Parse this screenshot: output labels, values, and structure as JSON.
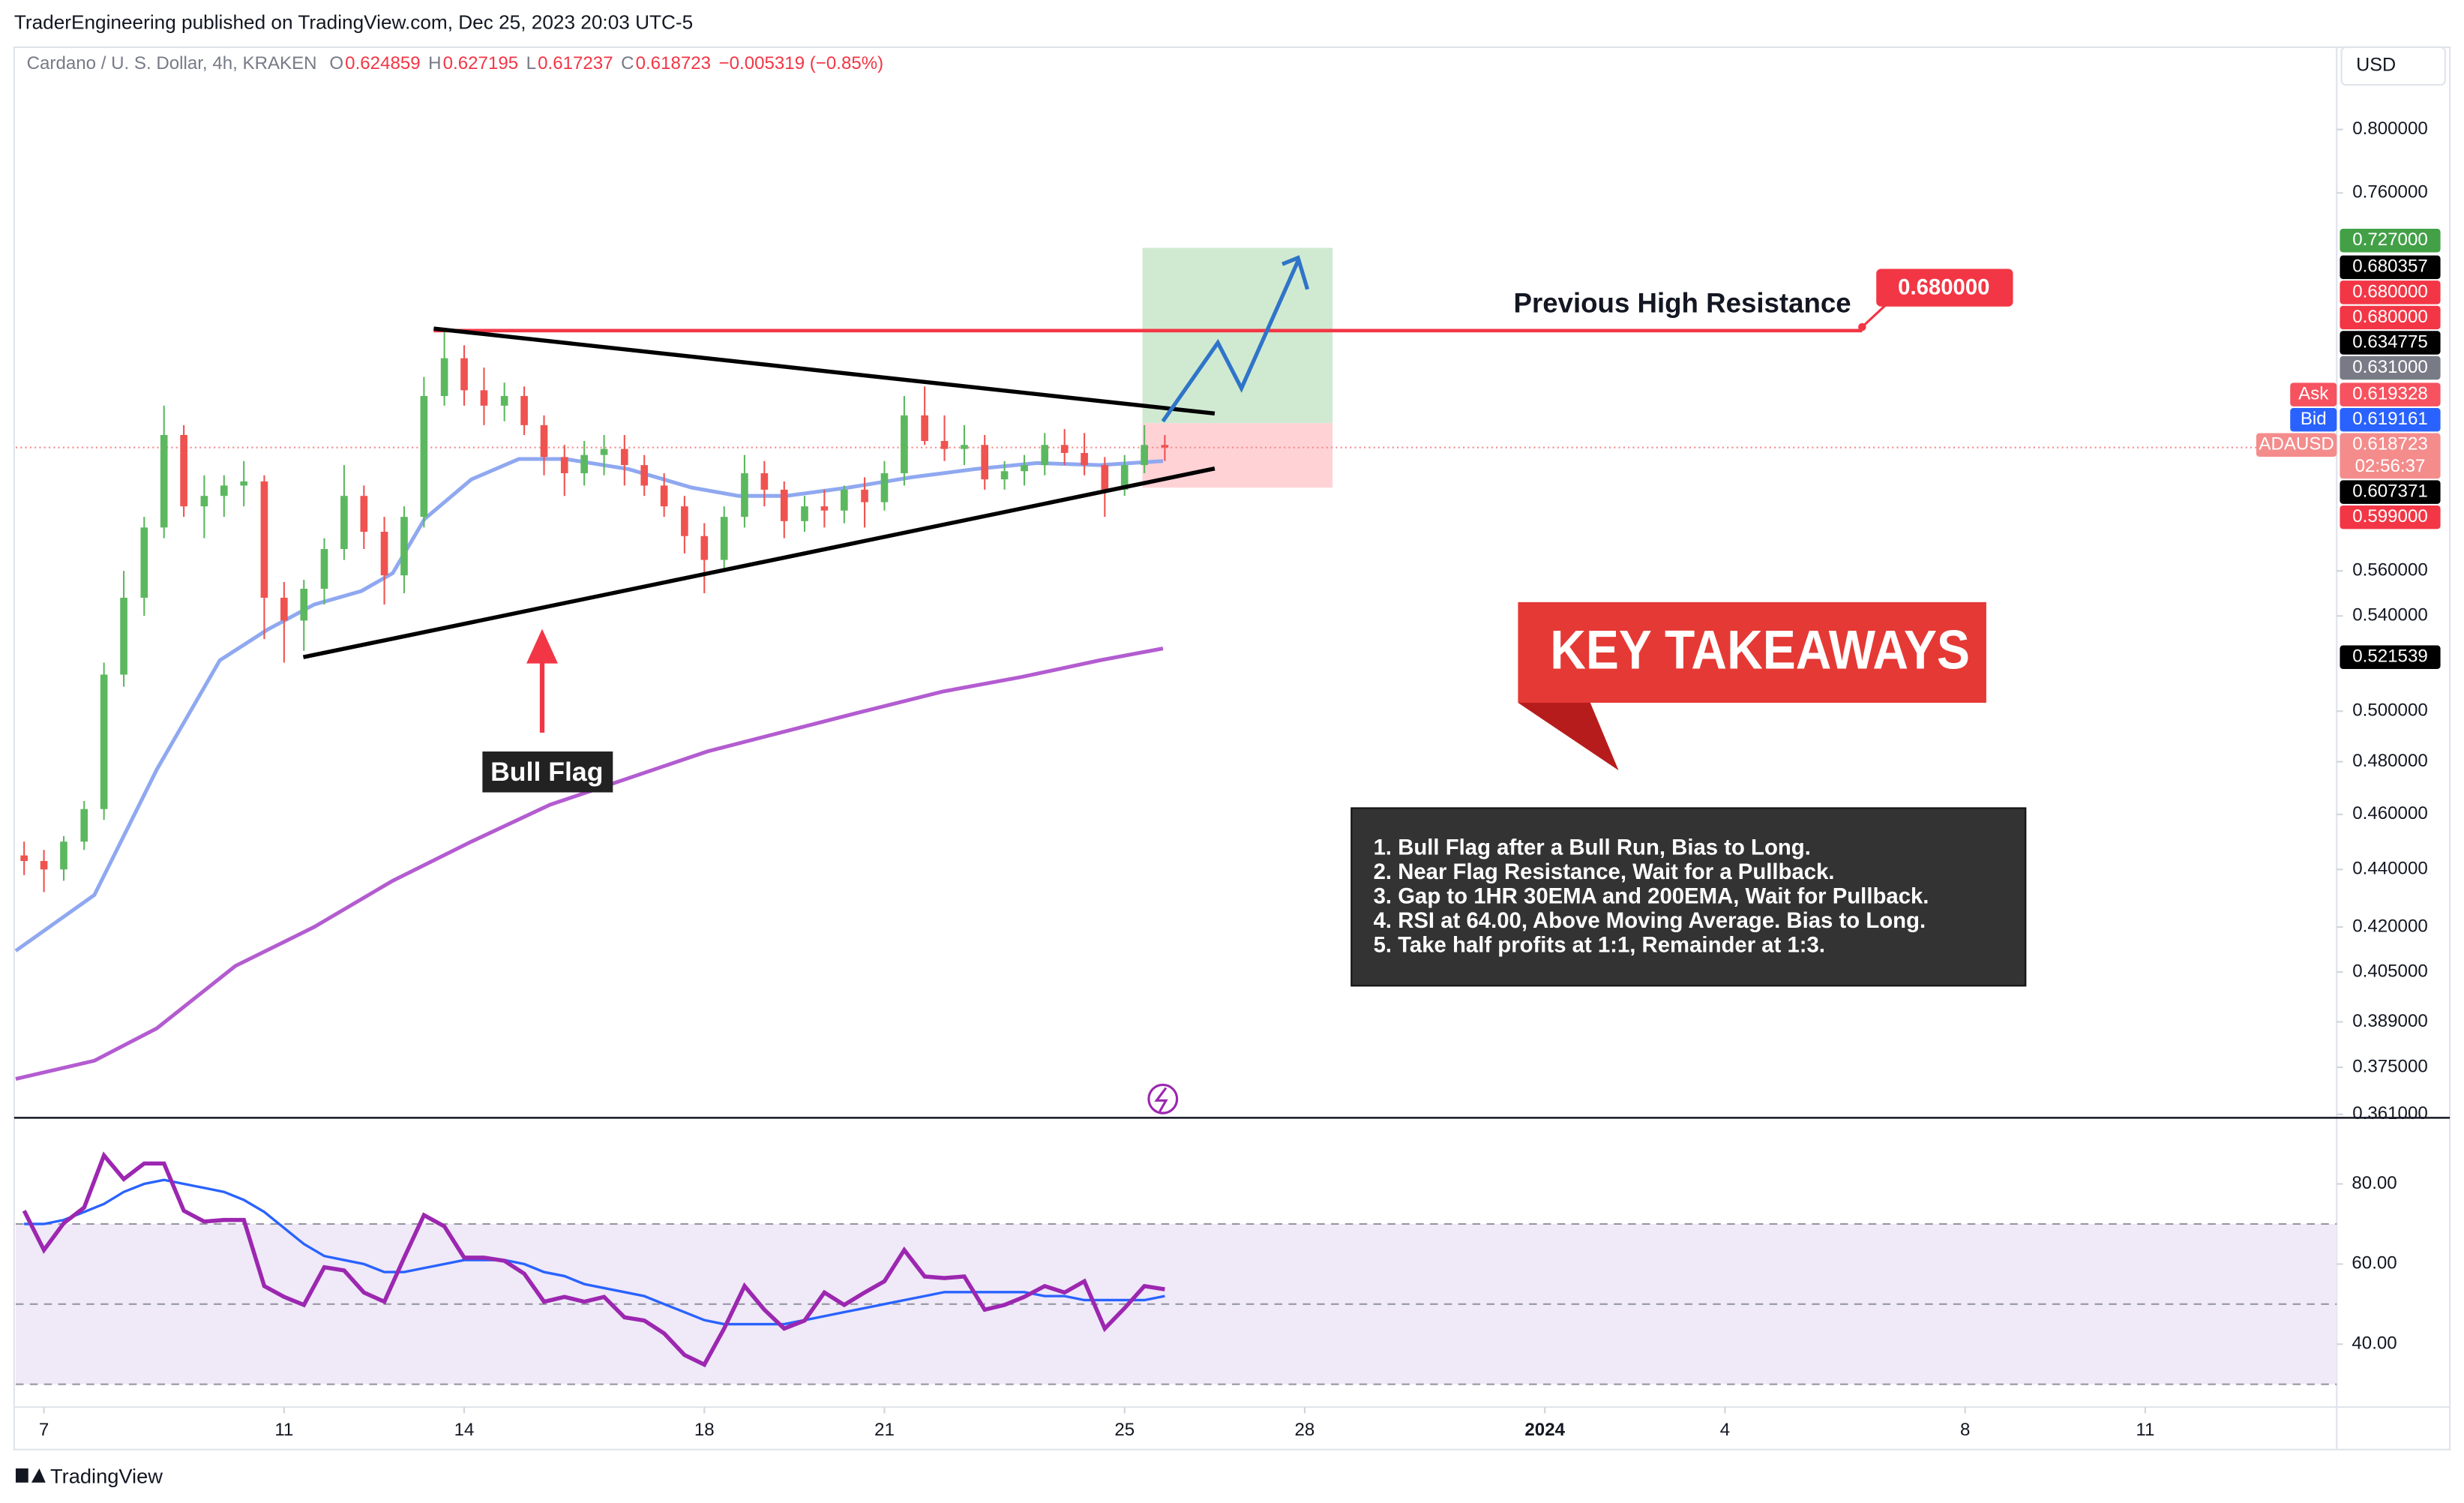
{
  "header": {
    "text": "TraderEngineering published on TradingView.com, Dec 25, 2023 20:03 UTC-5"
  },
  "currency": "USD",
  "footer": "TradingView",
  "annotations": {
    "resistance_label": "Previous High Resistance",
    "resistance_callout": "0.680000",
    "flag_label": "Bull Flag",
    "takeaways_title": "KEY TAKEAWAYS",
    "takeaways": [
      "1. Bull Flag after a Bull Run, Bias to Long.",
      "2. Near Flag Resistance, Wait for a Pullback.",
      "3. Gap to 1HR 30EMA and 200EMA, Wait for Pullback.",
      "4. RSI at 64.00, Above Moving Average. Bias to Long.",
      "5. Take half profits at 1:1, Remainder at 1:3."
    ]
  },
  "chart_data": [
    {
      "type": "candlestick",
      "symbol": "Cardano / U. S. Dollar, 4h, KRAKEN",
      "legend_values": [
        {
          "key": "O",
          "value": "0.624859"
        },
        {
          "key": "H",
          "value": "0.627195"
        },
        {
          "key": "L",
          "value": "0.617237"
        },
        {
          "key": "C",
          "value": "0.618723"
        }
      ],
      "change": "−0.005319 (−0.85%)",
      "x": [
        6.67,
        7,
        7.33,
        7.67,
        8,
        8.33,
        8.67,
        9,
        9.33,
        9.67,
        10,
        10.33,
        10.67,
        11,
        11.33,
        11.67,
        12,
        12.33,
        12.67,
        13,
        13.33,
        13.67,
        14,
        14.33,
        14.67,
        15,
        15.33,
        15.67,
        16,
        16.33,
        16.67,
        17,
        17.33,
        17.67,
        18,
        18.33,
        18.67,
        19,
        19.33,
        19.67,
        20,
        20.33,
        20.67,
        21,
        21.33,
        21.67,
        22,
        22.33,
        22.67,
        23,
        23.33,
        23.67,
        24,
        24.33,
        24.67,
        25,
        25.33,
        25.67
      ],
      "open": [
        0.445,
        0.443,
        0.44,
        0.45,
        0.462,
        0.515,
        0.548,
        0.58,
        0.625,
        0.59,
        0.595,
        0.6,
        0.602,
        0.548,
        0.538,
        0.552,
        0.57,
        0.595,
        0.578,
        0.558,
        0.585,
        0.645,
        0.665,
        0.648,
        0.64,
        0.645,
        0.63,
        0.614,
        0.606,
        0.615,
        0.618,
        0.61,
        0.6,
        0.59,
        0.576,
        0.565,
        0.585,
        0.606,
        0.598,
        0.583,
        0.59,
        0.588,
        0.598,
        0.592,
        0.606,
        0.635,
        0.622,
        0.618,
        0.62,
        0.603,
        0.607,
        0.61,
        0.62,
        0.616,
        0.61,
        0.598,
        0.61,
        0.62
      ],
      "high": [
        0.45,
        0.447,
        0.452,
        0.465,
        0.52,
        0.56,
        0.585,
        0.64,
        0.63,
        0.605,
        0.605,
        0.612,
        0.605,
        0.555,
        0.556,
        0.575,
        0.61,
        0.6,
        0.585,
        0.59,
        0.655,
        0.68,
        0.672,
        0.66,
        0.652,
        0.65,
        0.635,
        0.62,
        0.622,
        0.625,
        0.625,
        0.615,
        0.606,
        0.595,
        0.582,
        0.59,
        0.615,
        0.612,
        0.602,
        0.595,
        0.598,
        0.6,
        0.604,
        0.612,
        0.645,
        0.65,
        0.635,
        0.63,
        0.625,
        0.612,
        0.615,
        0.626,
        0.628,
        0.626,
        0.614,
        0.615,
        0.63,
        0.625
      ],
      "low": [
        0.438,
        0.432,
        0.436,
        0.447,
        0.458,
        0.51,
        0.54,
        0.575,
        0.585,
        0.575,
        0.585,
        0.59,
        0.53,
        0.52,
        0.525,
        0.545,
        0.565,
        0.57,
        0.545,
        0.55,
        0.58,
        0.64,
        0.64,
        0.63,
        0.632,
        0.625,
        0.605,
        0.595,
        0.6,
        0.605,
        0.6,
        0.595,
        0.585,
        0.568,
        0.55,
        0.56,
        0.58,
        0.59,
        0.575,
        0.578,
        0.58,
        0.582,
        0.58,
        0.588,
        0.6,
        0.62,
        0.612,
        0.61,
        0.598,
        0.598,
        0.6,
        0.605,
        0.61,
        0.605,
        0.585,
        0.595,
        0.606,
        0.612
      ],
      "close": [
        0.443,
        0.44,
        0.45,
        0.462,
        0.515,
        0.548,
        0.58,
        0.625,
        0.59,
        0.595,
        0.6,
        0.602,
        0.548,
        0.538,
        0.552,
        0.57,
        0.595,
        0.578,
        0.558,
        0.585,
        0.645,
        0.665,
        0.648,
        0.64,
        0.645,
        0.63,
        0.614,
        0.606,
        0.615,
        0.618,
        0.61,
        0.6,
        0.59,
        0.576,
        0.565,
        0.585,
        0.606,
        0.598,
        0.583,
        0.59,
        0.588,
        0.598,
        0.592,
        0.606,
        0.635,
        0.622,
        0.618,
        0.62,
        0.603,
        0.607,
        0.61,
        0.62,
        0.616,
        0.61,
        0.598,
        0.61,
        0.62,
        0.6187
      ],
      "color_up": "#5cb85f",
      "color_down": "#ef5350",
      "overlays": [
        {
          "color": "#8fa8f0",
          "x": [
            6.53,
            7.84,
            8.88,
            9.93,
            10.72,
            11.5,
            12.29,
            12.81,
            13.34,
            14.12,
            14.91,
            15.69,
            16.74,
            17.79,
            18.57,
            19.36,
            20.4,
            21.45,
            22.5,
            23.54,
            24.59,
            25.64
          ],
          "values": [
            0.412,
            0.431,
            0.477,
            0.521,
            0.534,
            0.545,
            0.551,
            0.559,
            0.584,
            0.603,
            0.613,
            0.613,
            0.608,
            0.599,
            0.595,
            0.595,
            0.599,
            0.604,
            0.608,
            0.611,
            0.61,
            0.612
          ]
        },
        {
          "color": "#b35cd0",
          "x": [
            6.53,
            7.84,
            8.88,
            10.19,
            11.5,
            12.81,
            14.12,
            15.43,
            16.74,
            18.05,
            19.36,
            20.66,
            21.97,
            23.28,
            24.59,
            25.64
          ],
          "values": [
            0.3715,
            0.377,
            0.387,
            0.407,
            0.42,
            0.436,
            0.45,
            0.4636,
            0.4737,
            0.484,
            0.492,
            0.5,
            0.508,
            0.514,
            0.521,
            0.526
          ]
        }
      ],
      "log_scale": true,
      "grid": false,
      "ylim": [
        0.36,
        0.855
      ],
      "yticks": [
        {
          "value": 0.8,
          "label": "0.800000"
        },
        {
          "value": 0.76,
          "label": "0.760000"
        },
        {
          "value": 0.56,
          "label": "0.560000"
        },
        {
          "value": 0.54,
          "label": "0.540000"
        },
        {
          "value": 0.5,
          "label": "0.500000"
        },
        {
          "value": 0.48,
          "label": "0.480000"
        },
        {
          "value": 0.46,
          "label": "0.460000"
        },
        {
          "value": 0.44,
          "label": "0.440000"
        },
        {
          "value": 0.42,
          "label": "0.420000"
        },
        {
          "value": 0.405,
          "label": "0.405000"
        },
        {
          "value": 0.389,
          "label": "0.389000"
        },
        {
          "value": 0.375,
          "label": "0.375000"
        },
        {
          "value": 0.361,
          "label": "0.361000"
        }
      ],
      "xlim": [
        6.53,
        45.19
      ],
      "xticks": [
        7,
        11,
        14,
        18,
        21,
        25,
        28,
        {
          "value": 32,
          "label": "2024"
        },
        {
          "value": 35,
          "label": "4"
        },
        {
          "value": 39,
          "label": "8"
        },
        {
          "value": 42,
          "label": "11"
        }
      ],
      "price_labels": [
        {
          "value": 0.727,
          "label": "0.727000",
          "color": "#43a047"
        },
        {
          "value": 0.680357,
          "label": "0.680357",
          "color": "#000000"
        },
        {
          "value": 0.68,
          "label": "0.680000",
          "color": "#f23645"
        },
        {
          "value": 0.68,
          "label": "0.680000",
          "color": "#f23645"
        },
        {
          "value": 0.634775,
          "label": "0.634775",
          "color": "#000000"
        },
        {
          "value": 0.631,
          "label": "0.631000",
          "color": "#787b86"
        },
        {
          "value": 0.619328,
          "label": "0.619328",
          "color": "#f7525f",
          "tag": "Ask"
        },
        {
          "value": 0.619161,
          "label": "0.619161",
          "color": "#2962ff",
          "tag": "Bid"
        },
        {
          "value": 0.618723,
          "label": "0.618723",
          "color": "#f48c8c",
          "tag": "ADAUSD",
          "countdown": "02:56:37"
        },
        {
          "value": 0.607371,
          "label": "0.607371",
          "color": "#000000"
        },
        {
          "value": 0.599,
          "label": "0.599000",
          "color": "#f23645"
        },
        {
          "value": 0.521539,
          "label": "0.521539",
          "color": "#000000"
        }
      ]
    },
    {
      "type": "line",
      "series": [
        {
          "color": "#9c27b0",
          "values": [
            73.3,
            63.5,
            70.2,
            74.1,
            87.1,
            81.2,
            85.1,
            85.1,
            73.3,
            70.6,
            71,
            71,
            54.5,
            51.8,
            49.8,
            59.2,
            58.4,
            52.9,
            50.6,
            61.6,
            72.2,
            69.4,
            61.6,
            61.6,
            60.8,
            57.6,
            50.6,
            51.8,
            50.6,
            51.8,
            46.7,
            45.9,
            42.7,
            37.3,
            34.9,
            43.9,
            54.5,
            48.6,
            43.9,
            45.9,
            52.9,
            49.8,
            52.9,
            55.7,
            63.5,
            56.9,
            56.5,
            56.9,
            48.6,
            49.8,
            51.8,
            54.5,
            52.9,
            55.7,
            43.9,
            49,
            54.5,
            53.7
          ]
        },
        {
          "color": "#2962ff",
          "values": [
            70,
            70,
            71,
            73,
            75,
            78,
            80,
            81,
            80,
            79,
            78,
            76,
            73,
            69,
            65,
            62,
            61,
            60,
            58,
            58,
            59,
            60,
            61,
            61,
            61,
            60,
            58,
            57,
            55,
            54,
            53,
            52,
            50,
            48,
            46,
            45,
            45,
            45,
            45,
            46,
            47,
            48,
            49,
            50,
            51,
            52,
            53,
            53,
            53,
            53,
            53,
            52,
            52,
            51,
            51,
            51,
            51,
            52
          ]
        }
      ],
      "ylim": [
        24.3,
        96.1
      ],
      "yticks": [
        {
          "value": 40,
          "label": "40.00"
        },
        {
          "value": 60,
          "label": "60.00"
        },
        {
          "value": 80,
          "label": "80.00"
        }
      ],
      "bands": [
        70,
        50,
        30
      ],
      "band_fill": "#efe9f8"
    }
  ]
}
